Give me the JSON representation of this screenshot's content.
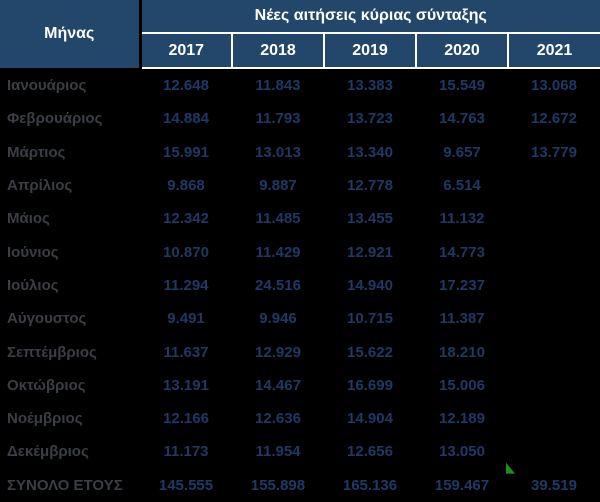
{
  "header": {
    "month_col": "Μήνας",
    "group_title": "Νέες αιτήσεις κύριας σύνταξης",
    "years": [
      "2017",
      "2018",
      "2019",
      "2020",
      "2021"
    ]
  },
  "rows": [
    {
      "label": "Ιανουάριος",
      "values": [
        "12.648",
        "11.843",
        "13.383",
        "15.549",
        "13.068"
      ]
    },
    {
      "label": "Φεβρουάριος",
      "values": [
        "14.884",
        "11.793",
        "13.723",
        "14.763",
        "12.672"
      ]
    },
    {
      "label": "Μάρτιος",
      "values": [
        "15.991",
        "13.013",
        "13.340",
        "9.657",
        "13.779"
      ]
    },
    {
      "label": "Απρίλιος",
      "values": [
        "9.868",
        "9.887",
        "12.778",
        "6.514",
        ""
      ]
    },
    {
      "label": "Μάιος",
      "values": [
        "12.342",
        "11.485",
        "13.455",
        "11.132",
        ""
      ]
    },
    {
      "label": "Ιούνιος",
      "values": [
        "10.870",
        "11.429",
        "12.921",
        "14.773",
        ""
      ]
    },
    {
      "label": "Ιούλιος",
      "values": [
        "11.294",
        "24.516",
        "14.940",
        "17.237",
        ""
      ]
    },
    {
      "label": "Αύγουστος",
      "values": [
        "9.491",
        "9.946",
        "10.715",
        "11.387",
        ""
      ]
    },
    {
      "label": "Σεπτέμβριος",
      "values": [
        "11.637",
        "12.929",
        "15.622",
        "18.210",
        ""
      ]
    },
    {
      "label": "Οκτώβριος",
      "values": [
        "13.191",
        "14.467",
        "16.699",
        "15.006",
        ""
      ]
    },
    {
      "label": "Νοέμβριος",
      "values": [
        "12.166",
        "12.636",
        "14.904",
        "12.189",
        ""
      ]
    },
    {
      "label": "Δεκέμβριος",
      "values": [
        "11.173",
        "11.954",
        "12.656",
        "13.050",
        ""
      ]
    }
  ],
  "total_row": {
    "label": "ΣΥΝΟΛΟ ΕΤΟΥΣ",
    "values": [
      "145.555",
      "155.898",
      "165.136",
      "159.467",
      "39.519"
    ]
  },
  "icons": {
    "flag": "green-flag-icon"
  },
  "colors": {
    "header_bg": "#23476B",
    "header_text": "#FFFFFF",
    "body_bg": "#000000",
    "month_text": "#3B3E44",
    "value_text": "#1F3864",
    "flag_green": "#1E8E1E"
  },
  "chart_data": {
    "type": "table",
    "title": "Νέες αιτήσεις κύριας σύνταξης",
    "categories": [
      "Ιανουάριος",
      "Φεβρουάριος",
      "Μάρτιος",
      "Απρίλιος",
      "Μάιος",
      "Ιούνιος",
      "Ιούλιος",
      "Αύγουστος",
      "Σεπτέμβριος",
      "Οκτώβριος",
      "Νοέμβριος",
      "Δεκέμβριος"
    ],
    "series": [
      {
        "name": "2017",
        "values": [
          12648,
          14884,
          15991,
          9868,
          12342,
          10870,
          11294,
          9491,
          11637,
          13191,
          12166,
          11173
        ],
        "total": 145555
      },
      {
        "name": "2018",
        "values": [
          11843,
          11793,
          13013,
          9887,
          11485,
          11429,
          24516,
          9946,
          12929,
          14467,
          12636,
          11954
        ],
        "total": 155898
      },
      {
        "name": "2019",
        "values": [
          13383,
          13723,
          13340,
          12778,
          13455,
          12921,
          14940,
          10715,
          15622,
          16699,
          14904,
          12656
        ],
        "total": 165136
      },
      {
        "name": "2020",
        "values": [
          15549,
          14763,
          9657,
          6514,
          11132,
          14773,
          17237,
          11387,
          18210,
          15006,
          12189,
          13050
        ],
        "total": 159467
      },
      {
        "name": "2021",
        "values": [
          13068,
          12672,
          13779,
          null,
          null,
          null,
          null,
          null,
          null,
          null,
          null,
          null
        ],
        "total": 39519
      }
    ],
    "total_row_label": "ΣΥΝΟΛΟ ΕΤΟΥΣ"
  }
}
